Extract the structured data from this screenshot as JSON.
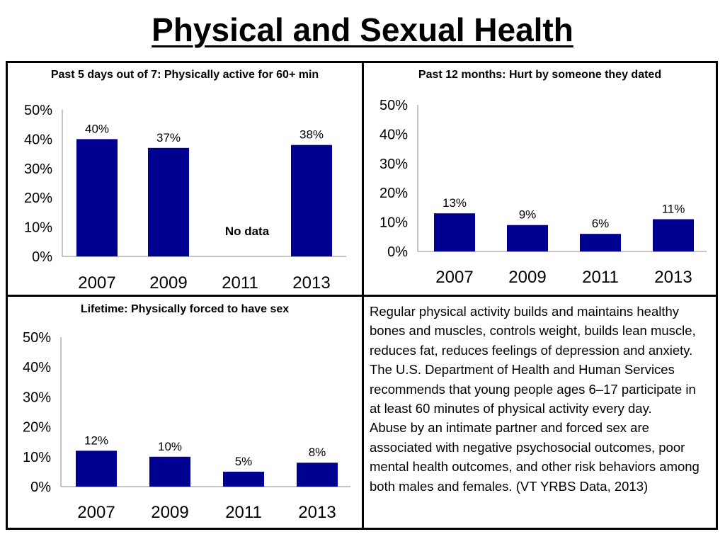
{
  "title": "Physical and Sexual Health",
  "panels": {
    "tl_title": "Past 5 days out of 7: Physically active for 60+ min",
    "tr_title": "Past 12 months: Hurt by someone they dated",
    "bl_title": "Lifetime: Physically forced to have sex"
  },
  "text": {
    "para1": "Regular physical activity builds and maintains healthy bones and muscles, controls weight, builds lean muscle, reduces fat, reduces feelings of depression and anxiety. The U.S. Department of Health and Human Services recommends that young people ages 6–17 participate in at least 60 minutes of physical activity every day.",
    "para2": "Abuse by an intimate partner and forced sex are associated with negative psychosocial outcomes, poor mental health outcomes, and other risk behaviors among both males and females. (VT YRBS Data, 2013)"
  },
  "colors": {
    "bar": "#000090"
  },
  "chart_data": [
    {
      "type": "bar",
      "title": "Past 5 days out of 7: Physically active for 60+ min",
      "categories": [
        "2007",
        "2009",
        "2011",
        "2013"
      ],
      "values": [
        40,
        37,
        null,
        38
      ],
      "labels": [
        "40%",
        "37%",
        "No data",
        "38%"
      ],
      "yticks": [
        "0%",
        "10%",
        "20%",
        "30%",
        "40%",
        "50%"
      ],
      "ylim": [
        0,
        50
      ],
      "grid": false
    },
    {
      "type": "bar",
      "title": "Past 12 months: Hurt by someone they dated",
      "categories": [
        "2007",
        "2009",
        "2011",
        "2013"
      ],
      "values": [
        13,
        9,
        6,
        11
      ],
      "labels": [
        "13%",
        "9%",
        "6%",
        "11%"
      ],
      "yticks": [
        "0%",
        "10%",
        "20%",
        "30%",
        "40%",
        "50%"
      ],
      "ylim": [
        0,
        50
      ],
      "grid": false
    },
    {
      "type": "bar",
      "title": "Lifetime: Physically forced to have sex",
      "categories": [
        "2007",
        "2009",
        "2011",
        "2013"
      ],
      "values": [
        12,
        10,
        5,
        8
      ],
      "labels": [
        "12%",
        "10%",
        "5%",
        "8%"
      ],
      "yticks": [
        "0%",
        "10%",
        "20%",
        "30%",
        "40%",
        "50%"
      ],
      "ylim": [
        0,
        50
      ],
      "grid": false
    }
  ]
}
